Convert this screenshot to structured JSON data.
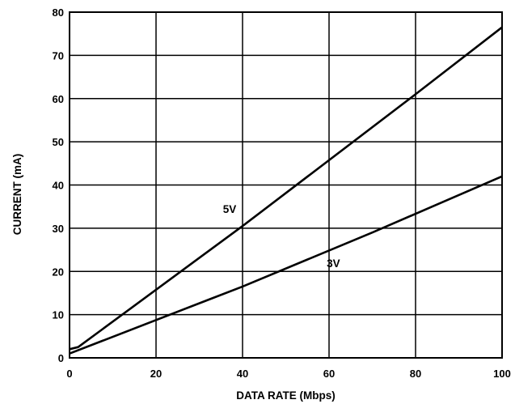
{
  "chart_data": {
    "type": "line",
    "xlabel": "DATA RATE (Mbps)",
    "ylabel": "CURRENT (mA)",
    "xlim": [
      0,
      100
    ],
    "ylim": [
      0,
      80
    ],
    "xticks": [
      0,
      20,
      40,
      60,
      80,
      100
    ],
    "yticks": [
      0,
      10,
      20,
      30,
      40,
      50,
      60,
      70,
      80
    ],
    "grid": true,
    "line_color": "#000000",
    "series": [
      {
        "name": "5V",
        "x": [
          0,
          2,
          40,
          80,
          100
        ],
        "y": [
          2,
          2.5,
          30.5,
          61,
          76.5
        ]
      },
      {
        "name": "3V",
        "x": [
          0,
          40,
          70,
          100
        ],
        "y": [
          1,
          16.5,
          29,
          42
        ]
      }
    ]
  }
}
